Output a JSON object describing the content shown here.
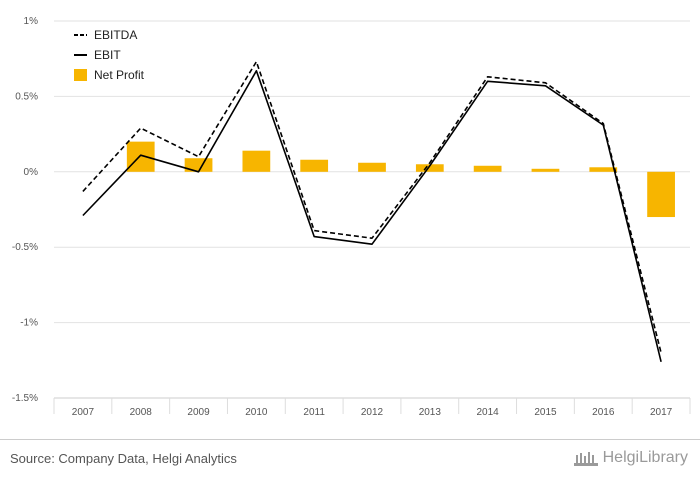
{
  "chart_data": {
    "type": "bar+line",
    "categories": [
      "2007",
      "2008",
      "2009",
      "2010",
      "2011",
      "2012",
      "2013",
      "2014",
      "2015",
      "2016",
      "2017"
    ],
    "yticks": [
      "1%",
      "0.5%",
      "0%",
      "-0.5%",
      "-1%",
      "-1.5%"
    ],
    "ylim": [
      -1.5,
      1.0
    ],
    "grid": true,
    "legend_position": "top-left",
    "series": [
      {
        "name": "EBITDA",
        "type": "line",
        "style": "dashed",
        "color": "#000000",
        "values": [
          -0.13,
          0.29,
          0.1,
          0.73,
          -0.39,
          -0.44,
          0.06,
          0.63,
          0.59,
          0.32,
          -1.2
        ]
      },
      {
        "name": "EBIT",
        "type": "line",
        "style": "solid",
        "color": "#000000",
        "values": [
          -0.29,
          0.11,
          0.0,
          0.67,
          -0.43,
          -0.48,
          0.04,
          0.6,
          0.57,
          0.31,
          -1.26
        ]
      },
      {
        "name": "Net Profit",
        "type": "bar",
        "color": "#f7b500",
        "values": [
          null,
          0.2,
          0.09,
          0.14,
          0.08,
          0.06,
          0.05,
          0.04,
          0.02,
          0.03,
          -0.3
        ]
      }
    ]
  },
  "footer": {
    "source": "Source: Company Data, Helgi Analytics",
    "brand": "HelgiLibrary"
  }
}
